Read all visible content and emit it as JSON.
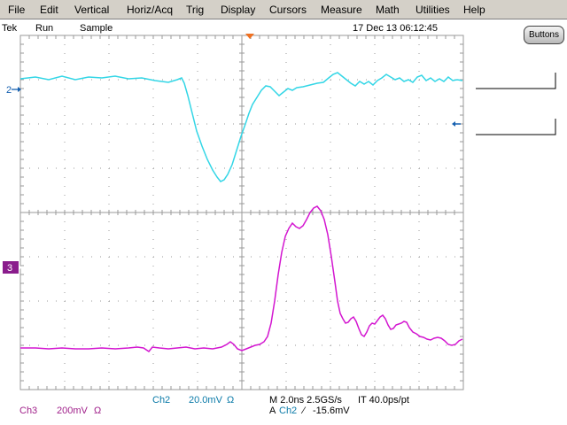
{
  "menu": [
    "File",
    "Edit",
    "Vertical",
    "Horiz/Acq",
    "Trig",
    "Display",
    "Cursors",
    "Measure",
    "Math",
    "Utilities",
    "Help"
  ],
  "status": {
    "brand": "Tek",
    "state": "Run",
    "mode": "Sample",
    "datetime": "17 Dec 13 06:12:45"
  },
  "buttons_label": "Buttons",
  "channels": {
    "ch2": {
      "marker": "2",
      "color": "#33d6e6"
    },
    "ch3": {
      "marker": "3",
      "color": "#d316d0"
    }
  },
  "readout": {
    "ch2_name": "Ch2",
    "ch2_scale": "20.0mV",
    "ch2_unit": "Ω",
    "ch3_name": "Ch3",
    "ch3_scale": "200mV",
    "ch3_unit": "Ω",
    "timebase": "M 2.0ns 2.5GS/s",
    "interp": "IT 40.0ps/pt",
    "trig_prefix": "A",
    "trig_src": "Ch2",
    "trig_slope": "⁄",
    "trig_level": "-15.6mV"
  },
  "colors": {
    "grid": "#9a9a9a",
    "accent_orange": "#f07020",
    "marker_blue": "#1560b0"
  }
}
